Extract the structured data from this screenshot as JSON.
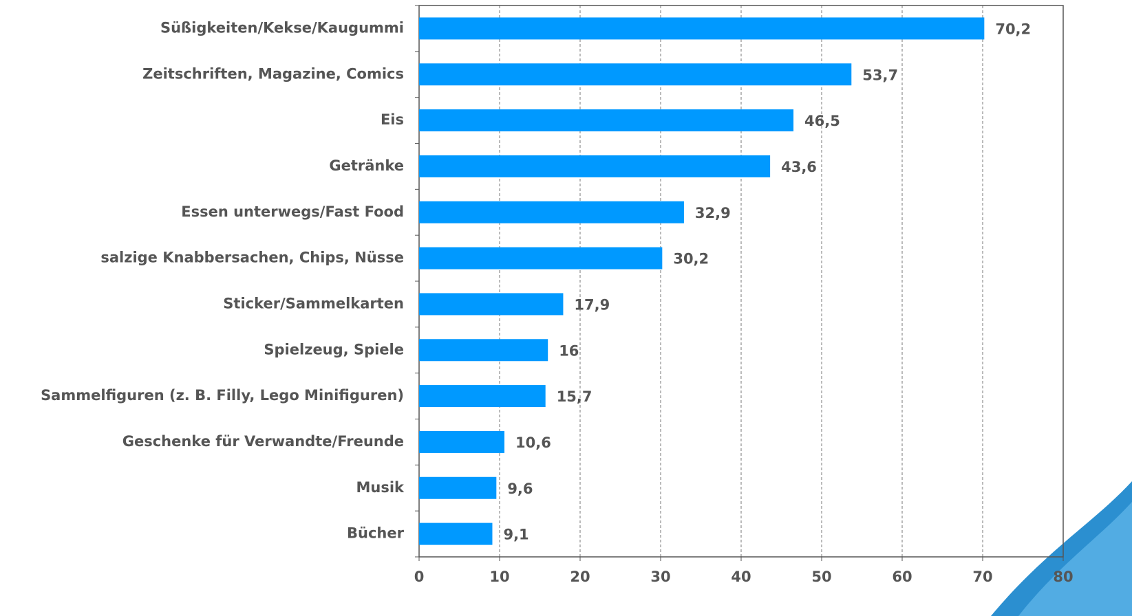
{
  "chart_data": {
    "type": "bar",
    "orientation": "horizontal",
    "categories": [
      "Süßigkeiten/Kekse/Kaugummi",
      "Zeitschriften, Magazine, Comics",
      "Eis",
      "Getränke",
      "Essen unterwegs/Fast Food",
      "salzige Knabbersachen, Chips, Nüsse",
      "Sticker/Sammelkarten",
      "Spielzeug, Spiele",
      "Sammelfiguren (z. B. Filly, Lego Minifiguren)",
      "Geschenke für Verwandte/Freunde",
      "Musik",
      "Bücher"
    ],
    "values": [
      70.2,
      53.7,
      46.5,
      43.6,
      32.9,
      30.2,
      17.9,
      16,
      15.7,
      10.6,
      9.6,
      9.1
    ],
    "value_labels": [
      "70,2",
      "53,7",
      "46,5",
      "43,6",
      "32,9",
      "30,2",
      "17,9",
      "16",
      "15,7",
      "10,6",
      "9,6",
      "9,1"
    ],
    "color": "#0099ff",
    "xlim": [
      0,
      80
    ],
    "xticks": [
      0,
      10,
      20,
      30,
      40,
      50,
      60,
      70,
      80
    ],
    "grid": true
  }
}
